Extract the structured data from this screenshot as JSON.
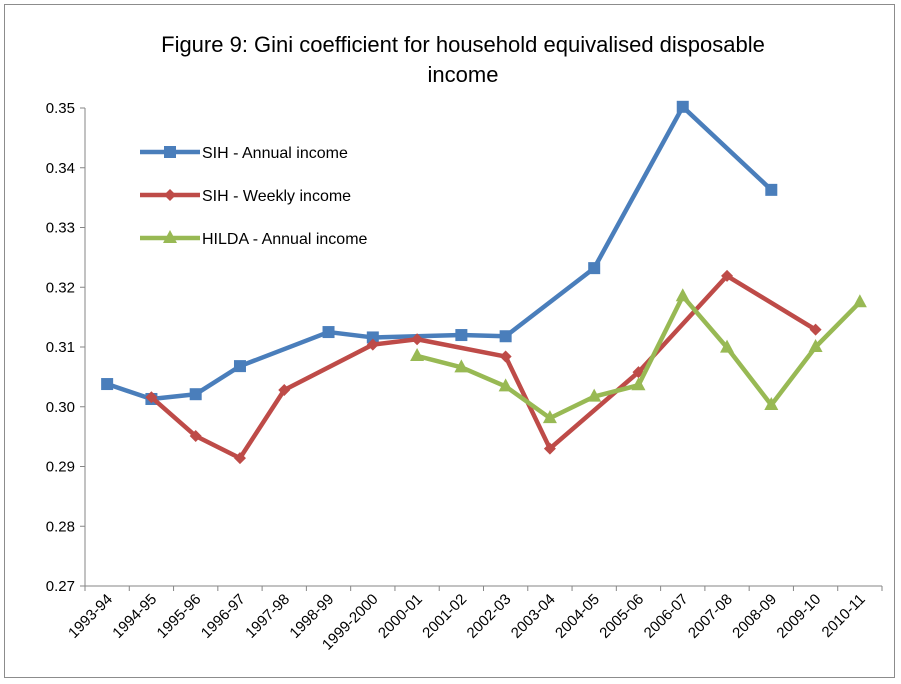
{
  "chart_data": {
    "type": "line",
    "title_line1": "Figure 9: Gini coefficient for household equivalised disposable",
    "title_line2": "income",
    "title": "Figure 9: Gini coefficient for household equivalised disposable income",
    "xlabel": "",
    "ylabel": "",
    "ylim": [
      0.27,
      0.35
    ],
    "yticks": [
      "0.27",
      "0.28",
      "0.29",
      "0.30",
      "0.31",
      "0.32",
      "0.33",
      "0.34",
      "0.35"
    ],
    "categories": [
      "1993-94",
      "1994-95",
      "1995-96",
      "1996-97",
      "1997-98",
      "1998-99",
      "1999-2000",
      "2000-01",
      "2001-02",
      "2002-03",
      "2003-04",
      "2004-05",
      "2005-06",
      "2006-07",
      "2007-08",
      "2008-09",
      "2009-10",
      "2010-11"
    ],
    "grid": false,
    "legend": "upper-left inside plot",
    "series": [
      {
        "name": "SIH - Annual income",
        "color": "#4a7ebb",
        "marker": "square",
        "values": [
          0.3038,
          0.3013,
          0.3021,
          0.3068,
          null,
          0.3125,
          0.3116,
          null,
          0.312,
          0.3118,
          null,
          0.3232,
          null,
          0.3502,
          null,
          0.3363,
          null,
          null
        ]
      },
      {
        "name": "SIH - Weekly income",
        "color": "#be4b48",
        "marker": "diamond",
        "values": [
          null,
          0.3016,
          0.2951,
          0.2914,
          0.3028,
          null,
          0.3104,
          0.3113,
          null,
          0.3084,
          0.293,
          null,
          0.3058,
          null,
          0.3219,
          null,
          0.3129,
          null
        ]
      },
      {
        "name": "HILDA - Annual income",
        "color": "#98b954",
        "marker": "triangle",
        "values": [
          null,
          null,
          null,
          null,
          null,
          null,
          null,
          0.3085,
          0.3066,
          0.3034,
          0.2981,
          0.3017,
          0.3036,
          0.3185,
          0.3099,
          0.3003,
          0.31,
          0.3175
        ]
      }
    ]
  }
}
